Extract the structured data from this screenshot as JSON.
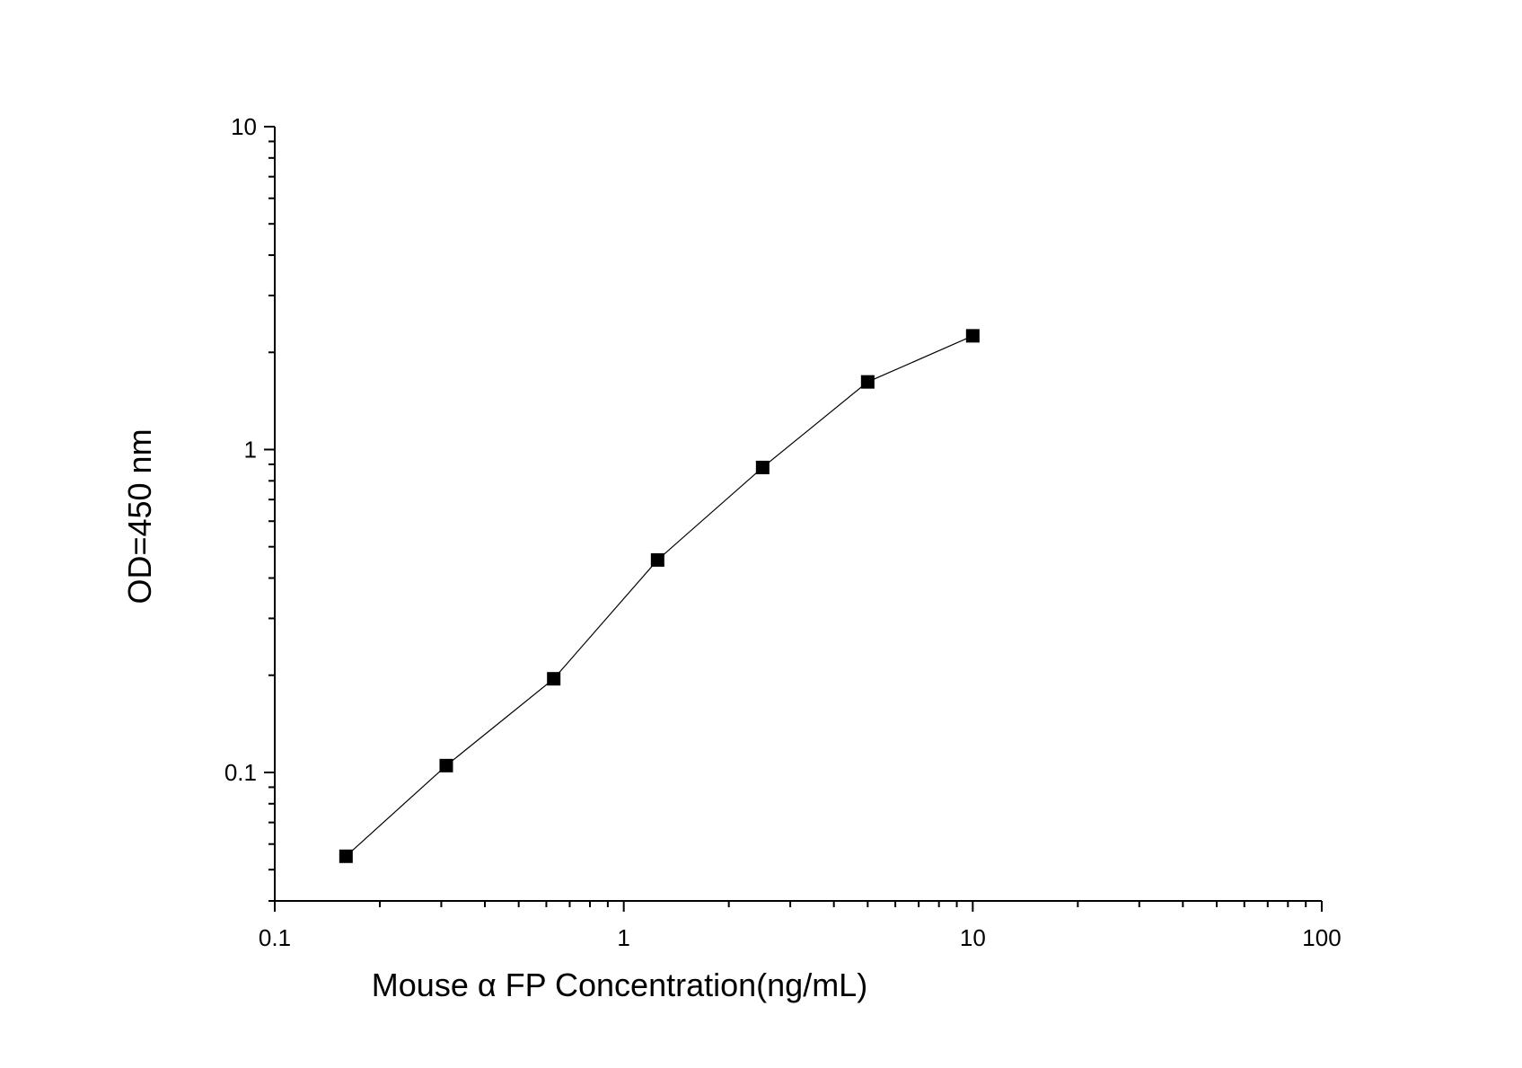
{
  "chart_data": {
    "type": "line",
    "xlabel": "Mouse α FP  Concentration(ng/mL)",
    "ylabel": "OD=450 nm",
    "x_scale": "log",
    "y_scale": "log",
    "xlim": [
      0.1,
      100
    ],
    "ylim": [
      0.04,
      10
    ],
    "x_ticks": [
      0.1,
      1,
      10,
      100
    ],
    "x_tick_labels": [
      "0.1",
      "1",
      "10",
      "100"
    ],
    "y_ticks": [
      0.1,
      1,
      10
    ],
    "y_tick_labels": [
      "0.1",
      "1",
      "10"
    ],
    "grid": false,
    "legend": "none",
    "marker": "square",
    "series": [
      {
        "x": [
          0.16,
          0.31,
          0.63,
          1.25,
          2.5,
          5,
          10
        ],
        "y": [
          0.055,
          0.105,
          0.195,
          0.455,
          0.88,
          1.62,
          2.25
        ]
      }
    ],
    "colors": {
      "marker": "#000000",
      "line": "#000000",
      "axis": "#000000"
    }
  }
}
